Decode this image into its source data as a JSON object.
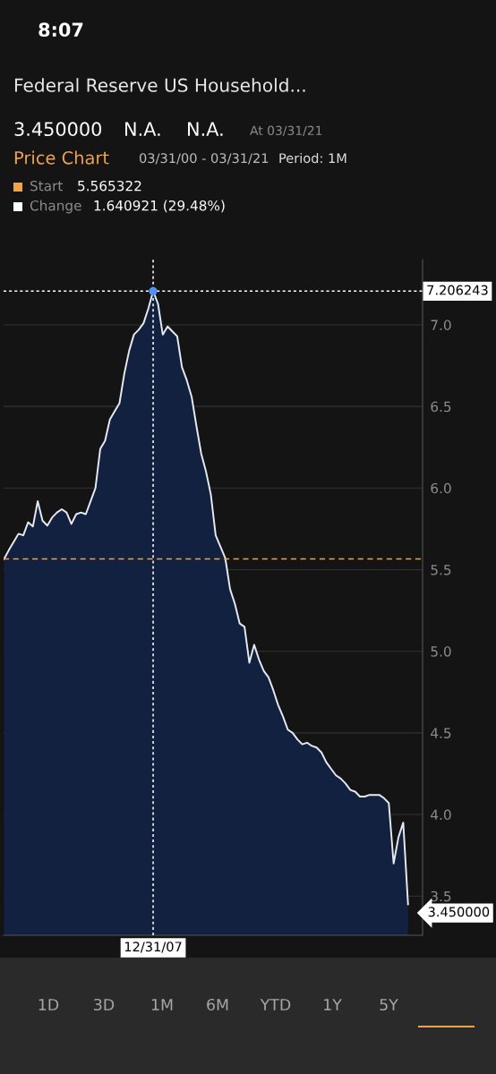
{
  "chart_data": {
    "type": "area",
    "title": "Federal Reserve US Household...",
    "categories": [
      null,
      null,
      null,
      null,
      null,
      null,
      null,
      null,
      null,
      null,
      null,
      null,
      null,
      null,
      null,
      null,
      null,
      null,
      null,
      null,
      null,
      null,
      null,
      null,
      null,
      null,
      null,
      null,
      null,
      null,
      null,
      "12/31/07",
      null,
      null,
      null,
      null,
      null,
      null,
      null,
      null,
      null,
      null,
      null,
      null,
      null,
      null,
      null,
      null,
      null,
      null,
      null,
      null,
      null,
      null,
      null,
      null,
      null,
      null,
      null,
      null,
      null,
      null,
      null,
      null,
      null,
      null,
      null,
      null,
      null,
      null,
      null,
      null,
      null,
      null,
      null,
      null,
      null,
      null,
      null,
      null,
      null,
      null,
      null,
      null,
      null
    ],
    "series": [
      {
        "color": "#e6ebf2",
        "values": [
          5.565322,
          5.62,
          5.67,
          5.72,
          5.71,
          5.79,
          5.765,
          5.92,
          5.8,
          5.77,
          5.82,
          5.85,
          5.87,
          5.85,
          5.78,
          5.84,
          5.85,
          5.84,
          5.92,
          6.0,
          6.24,
          6.29,
          6.42,
          6.47,
          6.52,
          6.7,
          6.84,
          6.94,
          6.97,
          7.01,
          7.1,
          7.206243,
          7.13,
          6.94,
          6.99,
          6.96,
          6.93,
          6.74,
          6.66,
          6.56,
          6.38,
          6.21,
          6.1,
          5.96,
          5.71,
          5.64,
          5.57,
          5.38,
          5.29,
          5.17,
          5.15,
          4.93,
          5.04,
          4.95,
          4.88,
          4.84,
          4.76,
          4.67,
          4.6,
          4.52,
          4.5,
          4.46,
          4.43,
          4.44,
          4.42,
          4.41,
          4.38,
          4.32,
          4.28,
          4.24,
          4.22,
          4.19,
          4.15,
          4.14,
          4.11,
          4.11,
          4.12,
          4.12,
          4.12,
          4.1,
          4.07,
          3.7,
          3.86,
          3.95,
          3.45
        ]
      },
      {
        "type": "scatter",
        "color": "#4f8ff7",
        "x": [
          "12/31/07"
        ],
        "values": [
          7.206243
        ]
      }
    ],
    "ylim": [
      3.26,
      7.4
    ],
    "yticks": [
      {
        "value": 3.5,
        "label": "3.5"
      },
      {
        "value": 4.0,
        "label": "4.0"
      },
      {
        "value": 4.5,
        "label": "4.5"
      },
      {
        "value": 5.0,
        "label": "5.0"
      },
      {
        "value": 5.5,
        "label": "5.5"
      },
      {
        "value": 6.0,
        "label": "6.0"
      },
      {
        "value": 6.5,
        "label": "6.5"
      },
      {
        "value": 7.0,
        "label": "7.0"
      }
    ],
    "grid": "y",
    "ref_lines": [
      {
        "axis": "y",
        "value": 5.565322,
        "color": "#f0a44a",
        "line_style": "dashed"
      },
      {
        "axis": "y",
        "value": 7.206243,
        "label": "7.206243",
        "color": "#ffffff",
        "line_style": "dotted"
      },
      {
        "axis": "x",
        "value": "12/31/07",
        "color": "#ffffff",
        "line_style": "dotted"
      }
    ],
    "annotations": [
      "8:07",
      "3.450000",
      "N.A.",
      "N.A.",
      "At 03/31/21",
      "Price Chart",
      "03/31/00 - 03/31/21",
      "Period: 1M",
      "Start",
      "5.565322",
      "Change",
      "1.640921 (29.48%)",
      "1D",
      "3D",
      "1M",
      "6M",
      "YTD",
      "1Y",
      "5Y",
      "3.450000"
    ]
  }
}
